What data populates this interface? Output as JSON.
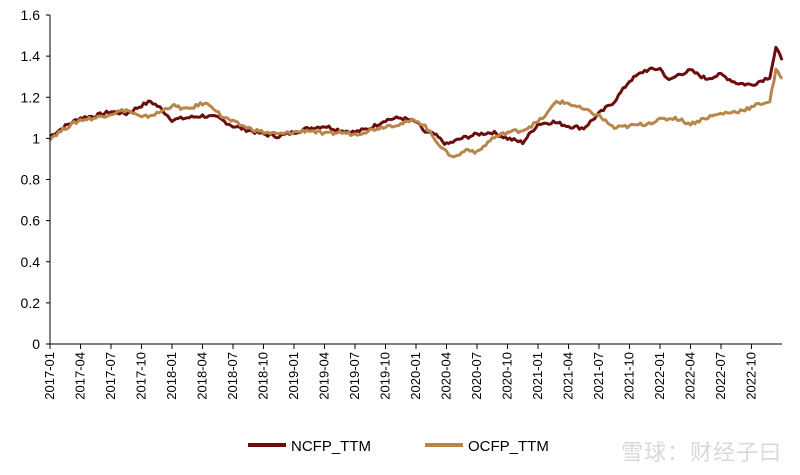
{
  "chart_data": {
    "type": "line",
    "title": "",
    "xlabel": "",
    "ylabel": "",
    "ylim": [
      0,
      1.6
    ],
    "yticks": [
      "0",
      "0.2",
      "0.4",
      "0.6",
      "0.8",
      "1",
      "1.2",
      "1.4",
      "1.6"
    ],
    "categories": [
      "2017-01",
      "2017-04",
      "2017-07",
      "2017-10",
      "2018-01",
      "2018-04",
      "2018-07",
      "2018-10",
      "2019-01",
      "2019-04",
      "2019-07",
      "2019-10",
      "2020-01",
      "2020-04",
      "2020-07",
      "2020-10",
      "2021-01",
      "2021-04",
      "2021-07",
      "2021-10",
      "2022-01",
      "2022-04",
      "2022-07",
      "2022-10"
    ],
    "legend_position": "bottom",
    "series": [
      {
        "name": "NCFP_TTM",
        "color": "#6b0d0d",
        "x": [
          0,
          0.5,
          1,
          1.5,
          2,
          2.5,
          3,
          3.3,
          3.6,
          4,
          4.5,
          5,
          5.5,
          6,
          6.5,
          7,
          7.5,
          8,
          8.5,
          9,
          9.5,
          10,
          10.5,
          11,
          11.5,
          12,
          12.3,
          12.6,
          13,
          13.5,
          14,
          14.5,
          15,
          15.5,
          16,
          16.5,
          17,
          17.5,
          18,
          18.5,
          19,
          19.5,
          20,
          20.3,
          20.6,
          21,
          21.5,
          22,
          22.5,
          23,
          23.3,
          23.6,
          23.8,
          24
        ],
        "values": [
          1.01,
          1.06,
          1.1,
          1.11,
          1.13,
          1.12,
          1.16,
          1.18,
          1.15,
          1.09,
          1.1,
          1.11,
          1.1,
          1.06,
          1.04,
          1.02,
          1.01,
          1.03,
          1.05,
          1.06,
          1.04,
          1.03,
          1.05,
          1.09,
          1.1,
          1.08,
          1.03,
          1.02,
          0.97,
          1.0,
          1.02,
          1.03,
          1.0,
          0.98,
          1.07,
          1.08,
          1.06,
          1.05,
          1.12,
          1.18,
          1.28,
          1.33,
          1.34,
          1.28,
          1.31,
          1.33,
          1.29,
          1.31,
          1.27,
          1.26,
          1.28,
          1.3,
          1.44,
          1.38
        ]
      },
      {
        "name": "OCFP_TTM",
        "color": "#b8864b",
        "x": [
          0,
          0.5,
          1,
          1.5,
          2,
          2.5,
          3,
          3.5,
          4,
          4.5,
          5,
          5.3,
          5.6,
          6,
          6.5,
          7,
          7.5,
          8,
          8.5,
          9,
          9.5,
          10,
          10.5,
          11,
          11.5,
          12,
          12.3,
          12.6,
          13,
          13.3,
          13.7,
          14,
          14.5,
          15,
          15.5,
          16,
          16.3,
          16.6,
          17,
          17.5,
          18,
          18.5,
          19,
          19.5,
          20,
          20.5,
          21,
          21.5,
          22,
          22.5,
          23,
          23.3,
          23.6,
          23.8,
          24
        ],
        "values": [
          1.0,
          1.05,
          1.09,
          1.1,
          1.12,
          1.14,
          1.1,
          1.12,
          1.16,
          1.14,
          1.17,
          1.16,
          1.11,
          1.08,
          1.05,
          1.03,
          1.02,
          1.03,
          1.04,
          1.02,
          1.03,
          1.02,
          1.04,
          1.06,
          1.07,
          1.09,
          1.06,
          1.0,
          0.93,
          0.91,
          0.95,
          0.93,
          1.0,
          1.03,
          1.04,
          1.08,
          1.12,
          1.18,
          1.17,
          1.14,
          1.11,
          1.05,
          1.06,
          1.07,
          1.09,
          1.1,
          1.07,
          1.1,
          1.12,
          1.13,
          1.15,
          1.17,
          1.18,
          1.33,
          1.29
        ]
      }
    ]
  },
  "watermark": "雪球：财经子曰"
}
